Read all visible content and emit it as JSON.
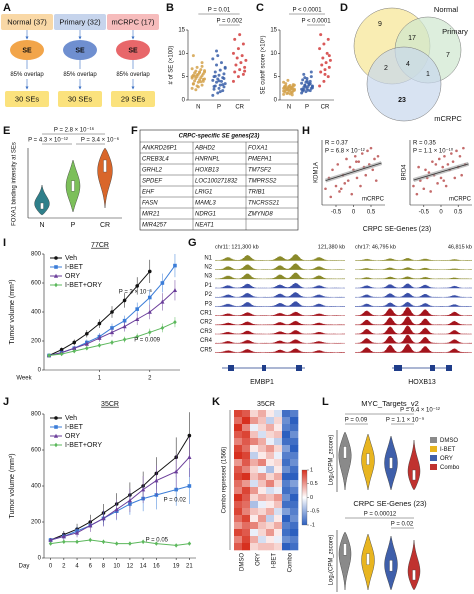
{
  "panel_a": {
    "label": "A",
    "columns": [
      {
        "group": "Normal (37)",
        "node": "SE",
        "overlap": "85% overlap",
        "result": "30 SEs"
      },
      {
        "group": "Primary (32)",
        "node": "SE",
        "overlap": "85% overlap",
        "result": "30 SEs"
      },
      {
        "group": "mCRPC (17)",
        "node": "SE",
        "overlap": "85% overlap",
        "result": "29 SEs"
      }
    ]
  },
  "panel_d": {
    "label": "D",
    "sets": [
      "Normal",
      "Primary",
      "mCRPC"
    ],
    "regions": [
      9,
      17,
      7,
      4,
      2,
      1,
      23
    ]
  },
  "panel_e": {
    "label": "E",
    "ylabel": "FOXA1 binding intensity at SEs",
    "categories": [
      "N",
      "P",
      "CR"
    ],
    "annotations": [
      "P = 2.8 × 10⁻¹⁶",
      "P = 4.3 × 10⁻¹²",
      "P = 3.4 × 10⁻⁶"
    ],
    "colors": [
      "#2f7f8a",
      "#7cbf5a",
      "#d9662a"
    ]
  },
  "panel_f": {
    "label": "F",
    "title": "CRPC-specific SE genes(23)",
    "rows": [
      [
        "ANKRD26P1",
        "ABHD2",
        "FOXA1"
      ],
      [
        "CREB3L4",
        "HNRNPL",
        "PMEPA1"
      ],
      [
        "GRHL2",
        "HOXB13",
        "TM7SF2"
      ],
      [
        "SPDEF",
        "LOC100271832",
        "TMPRSS2"
      ],
      [
        "EHF",
        "LRIG1",
        "TRIB1"
      ],
      [
        "FASN",
        "MAML3",
        "TNCRSS21"
      ],
      [
        "MIR21",
        "NDRG1",
        "ZMYND8"
      ],
      [
        "MIR4257",
        "NEAT1"
      ]
    ]
  },
  "panel_g": {
    "label": "G",
    "coords": [
      "chr11: 121,300 kb",
      "121,380 kb",
      "chr17: 46,795 kb",
      "46,815 kb"
    ],
    "tracks": [
      "N1",
      "N2",
      "N3",
      "P1",
      "P2",
      "P3",
      "CR1",
      "CR2",
      "CR3",
      "CR4",
      "CR5"
    ],
    "track_colors": [
      "#8a8a2a",
      "#8a8a2a",
      "#8a8a2a",
      "#3a4fa8",
      "#3a4fa8",
      "#3a4fa8",
      "#a3141c",
      "#a3141c",
      "#a3141c",
      "#a3141c",
      "#a3141c"
    ],
    "genes": [
      "EMBP1",
      "HOXB13"
    ]
  },
  "panel_h": {
    "label": "H",
    "xlabel": "CRPC SE-Genes (23)"
  },
  "panel_l": {
    "label": "L",
    "ylabel": "Log₂(CPM_zscore)",
    "legend": [
      "DMSO",
      "I-BET",
      "ORY",
      "Combo"
    ],
    "colors": [
      "#8a8a8a",
      "#e8b520",
      "#3f5faa",
      "#c0322f"
    ],
    "plots": [
      {
        "title": "MYC_Targets_v2",
        "annotations": [
          "P = 0.09",
          "P = 6.4 × 10⁻¹²",
          "P = 1.1 × 10⁻⁹"
        ]
      },
      {
        "title": "CRPC SE-Genes (23)",
        "annotations": [
          "P = 0.00012",
          "P = 0.02"
        ]
      }
    ]
  },
  "chart_data": [
    {
      "type": "strip",
      "label": "B",
      "ylabel": "# of SE (×100)",
      "categories": [
        "N",
        "P",
        "CR"
      ],
      "colors": [
        "#d4a24c",
        "#3a5fa8",
        "#d23c3c"
      ],
      "ylim": [
        0,
        15
      ],
      "yticks": [
        0,
        5,
        10,
        15
      ],
      "annotations": [
        "P = 0.01",
        "P = 0.002"
      ],
      "values": [
        [
          2.5,
          3,
          3.2,
          3.5,
          3.8,
          4,
          4.1,
          4.3,
          4.5,
          4.6,
          4.8,
          5,
          5,
          5.2,
          5.3,
          5.5,
          5.6,
          5.8,
          6,
          6,
          6.2,
          6.5,
          6.7,
          7,
          7.2,
          3.4,
          2.8,
          4.4,
          5.1,
          5.9,
          6.3,
          2.2,
          3.9,
          4.7,
          5.4,
          8,
          9.5
        ],
        [
          1,
          1.5,
          2,
          2.3,
          2.5,
          2.8,
          3,
          3.2,
          3.5,
          3.8,
          4,
          4.2,
          4.5,
          4.8,
          5,
          5.3,
          5.6,
          6,
          6.4,
          7,
          7.5,
          8,
          8.8,
          9.5,
          3.3,
          2.9,
          4.1,
          4.6,
          5.1,
          1.8,
          6.8,
          10.5
        ],
        [
          4,
          5,
          5.5,
          6,
          6.5,
          7,
          7.5,
          8,
          8.5,
          9,
          9.5,
          10,
          11,
          12,
          13,
          14,
          6.2
        ]
      ]
    },
    {
      "type": "strip",
      "label": "C",
      "ylabel": "SE cutoff score (×10⁵)",
      "categories": [
        "N",
        "P",
        "CR"
      ],
      "colors": [
        "#d4a24c",
        "#3a5fa8",
        "#d23c3c"
      ],
      "ylim": [
        0,
        15
      ],
      "yticks": [
        0,
        5,
        10,
        15
      ],
      "annotations": [
        "P < 0.0001",
        "P < 0.0001"
      ],
      "values": [
        [
          1.2,
          1.5,
          1.6,
          1.8,
          2,
          2,
          2.1,
          2.2,
          2.3,
          2.4,
          2.5,
          2.5,
          2.6,
          2.7,
          2.8,
          2.9,
          3,
          3,
          3.1,
          3.2,
          1.4,
          1.7,
          1.9,
          2.2,
          2.4,
          2.6,
          2.8,
          3.3,
          3.5,
          1.3,
          2.1,
          2.3,
          2.7,
          3.8,
          4.2,
          1.1,
          2.9
        ],
        [
          1.5,
          1.8,
          2,
          2.2,
          2.4,
          2.5,
          2.7,
          2.9,
          3,
          3.2,
          3.4,
          3.6,
          3.8,
          4,
          4.3,
          4.6,
          5,
          5.5,
          2.1,
          2.6,
          3.1,
          3.3,
          2.3,
          2.8,
          3.5,
          1.9,
          4.1,
          6,
          2.2,
          3.7,
          2.9,
          4.8
        ],
        [
          3,
          4,
          5,
          6,
          6.5,
          7,
          7.5,
          8,
          8.5,
          9,
          10,
          11,
          12,
          13,
          14,
          5.5,
          9.5
        ]
      ]
    },
    {
      "type": "scatter",
      "ylabel": "KDM1A",
      "xlabel": "mCRPC",
      "color": "#b03a3a",
      "xlim": [
        -0.9,
        0.9
      ],
      "ylim": [
        -1.2,
        1.2
      ],
      "xticks": [
        -0.5,
        0,
        0.5
      ],
      "annotations": [
        "R = 0.37",
        "P = 6.8 × 10⁻¹²"
      ],
      "x": [
        -0.8,
        -0.7,
        -0.65,
        -0.6,
        -0.5,
        -0.45,
        -0.4,
        -0.3,
        -0.25,
        -0.2,
        -0.15,
        -0.1,
        -0.05,
        0,
        0.05,
        0.1,
        0.15,
        0.2,
        0.25,
        0.3,
        0.35,
        0.4,
        0.45,
        0.5,
        0.55,
        0.6,
        0.65,
        0.7,
        -0.35,
        0.08
      ],
      "values": [
        -0.6,
        -0.2,
        -0.9,
        0.1,
        -0.5,
        0.3,
        -0.7,
        -0.1,
        -0.4,
        0.5,
        -0.3,
        0.2,
        -0.8,
        0.1,
        0.6,
        -0.2,
        0.4,
        -0.5,
        0.7,
        0.2,
        -0.1,
        0.8,
        0.3,
        0.9,
        0.1,
        0.5,
        -0.3,
        0.6,
        -0.6,
        0.4
      ],
      "trend": {
        "x": [
          -0.8,
          0.8
        ],
        "y": [
          -0.3,
          0.35
        ]
      }
    },
    {
      "type": "scatter",
      "ylabel": "BRD4",
      "xlabel": "mCRPC",
      "color": "#b03a3a",
      "xlim": [
        -0.9,
        0.9
      ],
      "ylim": [
        -1.2,
        1.2
      ],
      "xticks": [
        -0.5,
        0,
        0.5
      ],
      "annotations": [
        "R = 0.35",
        "P = 1.1 × 10⁻¹⁰"
      ],
      "x": [
        -0.8,
        -0.7,
        -0.65,
        -0.6,
        -0.5,
        -0.45,
        -0.4,
        -0.3,
        -0.25,
        -0.2,
        -0.15,
        -0.1,
        -0.05,
        0,
        0.05,
        0.1,
        0.15,
        0.2,
        0.25,
        0.3,
        0.35,
        0.4,
        0.45,
        0.5,
        0.55,
        0.6,
        0.65,
        0.7,
        -0.35,
        0.08
      ],
      "values": [
        -0.5,
        -0.8,
        0.2,
        -0.3,
        -0.6,
        0.1,
        -0.2,
        -0.7,
        0.4,
        -0.1,
        0.3,
        -0.4,
        0.5,
        -0.2,
        0.2,
        0.6,
        -0.5,
        0.3,
        0.1,
        0.7,
        0.4,
        -0.2,
        0.8,
        0.2,
        0.6,
        -0.1,
        0.9,
        0.3,
        0,
        -0.3
      ],
      "trend": {
        "x": [
          -0.8,
          0.8
        ],
        "y": [
          -0.28,
          0.32
        ]
      }
    },
    {
      "type": "line",
      "label": "I",
      "title": "77CR",
      "ylabel": "Tumor volume (mm³)",
      "xlabel": "Week",
      "x": [
        0,
        0.25,
        0.5,
        0.75,
        1,
        1.25,
        1.5,
        1.75,
        2,
        2.25,
        2.5
      ],
      "xlim": [
        -0.1,
        2.6
      ],
      "xticks": [
        1,
        2
      ],
      "ylim": [
        0,
        800
      ],
      "yticks": [
        0,
        200,
        400,
        600,
        800
      ],
      "annotations": [
        "P = 3 × 10⁻⁶",
        "P = 0.009"
      ],
      "series": [
        {
          "name": "Veh",
          "color": "#111111",
          "values": [
            100,
            140,
            190,
            250,
            320,
            400,
            480,
            580,
            680,
            null,
            null
          ],
          "errors": [
            10,
            15,
            20,
            25,
            30,
            40,
            50,
            60,
            80,
            null,
            null
          ]
        },
        {
          "name": "I-BET",
          "color": "#3b7dd8",
          "values": [
            100,
            120,
            150,
            190,
            230,
            290,
            340,
            420,
            500,
            600,
            720
          ],
          "errors": [
            10,
            10,
            15,
            20,
            25,
            30,
            35,
            45,
            55,
            65,
            80
          ]
        },
        {
          "name": "ORY",
          "color": "#6a3d9a",
          "values": [
            100,
            120,
            150,
            180,
            220,
            260,
            300,
            350,
            400,
            470,
            550
          ],
          "errors": [
            10,
            10,
            15,
            20,
            25,
            30,
            35,
            40,
            50,
            60,
            70
          ]
        },
        {
          "name": "I-BET+ORY",
          "color": "#5cb85c",
          "values": [
            100,
            110,
            130,
            150,
            170,
            190,
            210,
            230,
            260,
            290,
            330
          ],
          "errors": [
            5,
            8,
            10,
            12,
            15,
            18,
            20,
            22,
            25,
            30,
            35
          ]
        }
      ]
    },
    {
      "type": "line",
      "label": "J",
      "title": "35CR",
      "ylabel": "Tumor volume (mm³)",
      "xlabel": "Day",
      "x": [
        0,
        2,
        4,
        6,
        8,
        10,
        12,
        14,
        16,
        19,
        21
      ],
      "xlim": [
        -1,
        22
      ],
      "xticks": [
        0,
        2,
        4,
        6,
        8,
        10,
        12,
        14,
        16,
        19,
        21
      ],
      "ylim": [
        0,
        800
      ],
      "yticks": [
        0,
        200,
        400,
        600,
        800
      ],
      "annotations": [
        "P = 0.05",
        "P = 0.02"
      ],
      "series": [
        {
          "name": "Veh",
          "color": "#111111",
          "values": [
            100,
            130,
            160,
            200,
            250,
            300,
            350,
            400,
            470,
            560,
            680
          ],
          "errors": [
            10,
            20,
            30,
            40,
            50,
            60,
            70,
            80,
            90,
            110,
            130
          ]
        },
        {
          "name": "I-BET",
          "color": "#3b7dd8",
          "values": [
            100,
            120,
            150,
            180,
            220,
            260,
            300,
            330,
            350,
            380,
            400
          ],
          "errors": [
            10,
            20,
            25,
            30,
            40,
            50,
            60,
            70,
            80,
            90,
            100
          ]
        },
        {
          "name": "ORY",
          "color": "#6a3d9a",
          "values": [
            100,
            120,
            140,
            180,
            220,
            270,
            320,
            380,
            430,
            480,
            560
          ],
          "errors": [
            10,
            20,
            25,
            35,
            45,
            55,
            65,
            75,
            85,
            95,
            110
          ]
        },
        {
          "name": "I-BET+ORY",
          "color": "#5cb85c",
          "values": [
            80,
            90,
            90,
            100,
            90,
            80,
            80,
            90,
            80,
            70,
            80
          ],
          "errors": [
            10,
            10,
            10,
            12,
            12,
            10,
            10,
            12,
            10,
            10,
            10
          ]
        }
      ]
    },
    {
      "type": "heatmap",
      "label": "K",
      "title": "35CR",
      "ylabel": "Combo repressed (1566)",
      "columns": [
        "DMSO",
        "ORY",
        "I-BET",
        "Combo"
      ],
      "zlim": [
        -1,
        1
      ],
      "zticks": [
        1,
        0.5,
        0,
        -0.5,
        -1
      ],
      "values": [
        [
          0.9,
          0.8,
          0.2,
          0.4,
          0.1,
          -0.2,
          -0.9,
          -0.8
        ],
        [
          0.7,
          1,
          0.5,
          0.3,
          -0.3,
          0.2,
          -0.7,
          -1
        ],
        [
          1,
          0.6,
          -0.1,
          0.2,
          0.4,
          0.1,
          -0.8,
          -0.9
        ],
        [
          0.8,
          0.9,
          0.3,
          -0.2,
          0.2,
          0.3,
          -1,
          -0.7
        ],
        [
          0.6,
          0.8,
          0.6,
          0.4,
          -0.1,
          -0.3,
          -0.9,
          -0.9
        ],
        [
          0.9,
          0.7,
          0.1,
          0.3,
          0.5,
          0.2,
          -0.6,
          -1
        ],
        [
          1,
          0.9,
          -0.3,
          0.1,
          0.3,
          -0.1,
          -0.8,
          -0.8
        ],
        [
          0.5,
          0.8,
          0.4,
          0.6,
          0.1,
          0.2,
          -0.9,
          -0.7
        ],
        [
          0.8,
          0.6,
          0.2,
          -0.1,
          -0.4,
          0.1,
          -0.7,
          -0.9
        ],
        [
          0.9,
          1,
          0.3,
          0.5,
          0.2,
          0.4,
          -1,
          -1
        ],
        [
          0.7,
          0.5,
          -0.2,
          0.3,
          0.6,
          0.2,
          -0.8,
          -0.6
        ],
        [
          0.6,
          0.9,
          0.5,
          0.1,
          -0.2,
          -0.1,
          -0.9,
          -0.8
        ],
        [
          1,
          0.8,
          0.2,
          0.4,
          0.3,
          0.5,
          -0.7,
          -1
        ],
        [
          0.8,
          0.7,
          -0.4,
          -0.1,
          0.1,
          0.3,
          -0.9,
          -0.9
        ],
        [
          0.9,
          0.6,
          0.3,
          0.2,
          0.4,
          -0.2,
          -0.6,
          -0.8
        ],
        [
          0.7,
          0.9,
          0.1,
          0.5,
          -0.3,
          0.1,
          -1,
          -0.7
        ],
        [
          0.5,
          0.7,
          0.6,
          0.3,
          0.2,
          0.4,
          -0.8,
          -0.9
        ],
        [
          0.9,
          0.8,
          -0.1,
          0.2,
          0.5,
          0.1,
          -0.9,
          -1
        ],
        [
          0.6,
          0.9,
          0.4,
          -0.2,
          0.1,
          -0.1,
          -0.7,
          -0.8
        ],
        [
          0.8,
          1,
          0.2,
          0.3,
          0.3,
          0.2,
          -1,
          -0.9
        ]
      ]
    }
  ]
}
